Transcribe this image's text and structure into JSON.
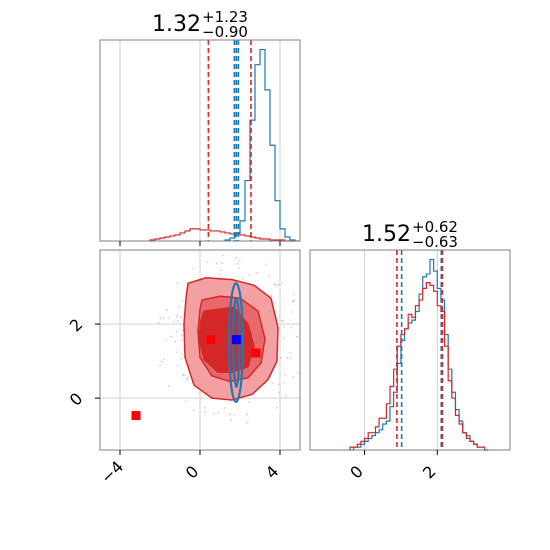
{
  "colors": {
    "red": "#d62728",
    "blue": "#1f77b4",
    "red_fill_light": "#f3a0a2",
    "red_fill_mid": "#e7696c",
    "marker_red": "#ff0000",
    "marker_blue": "#0000ff"
  },
  "chart_data": [
    {
      "type": "histogram",
      "panel": "top-left",
      "title_main": "1.32",
      "title_plus": "+1.23",
      "title_minus": "−0.90",
      "xlim": [
        -5,
        5
      ],
      "xticks": [
        -4,
        0,
        4
      ],
      "bin_width": 0.25,
      "series": [
        {
          "color": "red",
          "bin_start": -2.5,
          "counts": [
            1,
            2,
            3,
            4,
            5,
            6,
            8,
            10,
            12,
            12,
            11,
            11,
            10,
            10,
            9,
            8,
            7,
            7,
            6,
            5,
            4,
            3,
            2,
            2,
            1,
            1,
            1,
            0,
            0,
            0
          ]
        },
        {
          "color": "blue",
          "bin_start": 1.25,
          "counts": [
            1,
            3,
            8,
            20,
            60,
            120,
            175,
            190,
            150,
            95,
            40,
            12,
            4,
            1
          ]
        }
      ],
      "quantile_lines": [
        {
          "color": "red",
          "x": 0.42
        },
        {
          "color": "red",
          "x": 2.55
        },
        {
          "color": "blue",
          "x": 1.72
        },
        {
          "color": "blue",
          "x": 1.82
        },
        {
          "color": "blue",
          "x": 1.92
        }
      ],
      "peak": 190
    },
    {
      "type": "histogram",
      "panel": "bottom-right",
      "title_main": "1.52",
      "title_plus": "+0.62",
      "title_minus": "−0.63",
      "xlim": [
        -1.5,
        4
      ],
      "xticks": [
        0,
        2
      ],
      "bin_width": 0.1,
      "series": [
        {
          "color": "blue",
          "bin_start": -0.4,
          "counts": [
            0,
            1,
            1,
            2,
            3,
            4,
            5,
            6,
            7,
            9,
            10,
            15,
            20,
            30,
            38,
            42,
            44,
            45,
            48,
            54,
            60,
            61,
            66,
            62,
            56,
            52,
            40,
            28,
            20,
            14,
            10,
            6,
            5,
            3,
            2,
            1,
            1,
            0
          ]
        },
        {
          "color": "red",
          "bin_start": -0.4,
          "counts": [
            1,
            1,
            2,
            3,
            4,
            6,
            6,
            8,
            11,
            11,
            16,
            22,
            28,
            36,
            40,
            42,
            47,
            46,
            50,
            52,
            56,
            58,
            57,
            55,
            50,
            48,
            36,
            24,
            18,
            12,
            9,
            6,
            4,
            3,
            2,
            1,
            1,
            0
          ]
        }
      ],
      "quantile_lines": [
        {
          "color": "red",
          "x": 0.89
        },
        {
          "color": "red",
          "x": 2.14
        },
        {
          "color": "blue",
          "x": 1.02
        },
        {
          "color": "blue",
          "x": 2.11
        }
      ],
      "peak": 66
    },
    {
      "type": "scatter_contour",
      "panel": "bottom-left",
      "xlim": [
        -5,
        5
      ],
      "ylim": [
        -1.4,
        4.0
      ],
      "xticks": [
        -4,
        0,
        4
      ],
      "yticks": [
        0,
        2
      ],
      "red_contours": [
        {
          "level": "outer",
          "points": [
            [
              -0.6,
              3.1
            ],
            [
              0.3,
              3.25
            ],
            [
              1.6,
              3.2
            ],
            [
              2.7,
              3.05
            ],
            [
              3.55,
              2.7
            ],
            [
              3.9,
              1.9
            ],
            [
              3.85,
              1.0
            ],
            [
              3.4,
              0.5
            ],
            [
              2.6,
              0.1
            ],
            [
              1.6,
              -0.05
            ],
            [
              0.6,
              0.0
            ],
            [
              -0.3,
              0.35
            ],
            [
              -0.75,
              1.1
            ],
            [
              -0.8,
              2.0
            ],
            [
              -0.7,
              2.7
            ]
          ]
        },
        {
          "level": "middle",
          "points": [
            [
              0.1,
              2.65
            ],
            [
              1.0,
              2.75
            ],
            [
              2.0,
              2.7
            ],
            [
              2.9,
              2.35
            ],
            [
              3.25,
              1.6
            ],
            [
              3.05,
              0.95
            ],
            [
              2.4,
              0.55
            ],
            [
              1.5,
              0.45
            ],
            [
              0.6,
              0.6
            ],
            [
              0.0,
              1.1
            ],
            [
              -0.1,
              1.8
            ],
            [
              0.0,
              2.4
            ]
          ]
        },
        {
          "level": "inner",
          "points": [
            [
              0.2,
              2.35
            ],
            [
              0.9,
              2.4
            ],
            [
              1.7,
              2.45
            ],
            [
              2.4,
              2.0
            ],
            [
              2.7,
              1.4
            ],
            [
              2.4,
              0.85
            ],
            [
              1.6,
              0.7
            ],
            [
              0.9,
              0.7
            ],
            [
              0.2,
              1.05
            ],
            [
              -0.05,
              1.6
            ],
            [
              0.05,
              2.1
            ]
          ]
        }
      ],
      "blue_contours": [
        {
          "level": "outer",
          "cx": 1.8,
          "cy": 1.5,
          "rx": 0.35,
          "ry": 1.6
        },
        {
          "level": "inner",
          "cx": 1.82,
          "cy": 1.5,
          "rx": 0.15,
          "ry": 1.2
        }
      ],
      "markers": [
        {
          "color": "red",
          "x": -3.2,
          "y": -0.47
        },
        {
          "color": "red",
          "x": 0.55,
          "y": 1.58
        },
        {
          "color": "red",
          "x": 2.8,
          "y": 1.22
        },
        {
          "color": "blue",
          "x": 1.82,
          "y": 1.58
        }
      ]
    }
  ]
}
